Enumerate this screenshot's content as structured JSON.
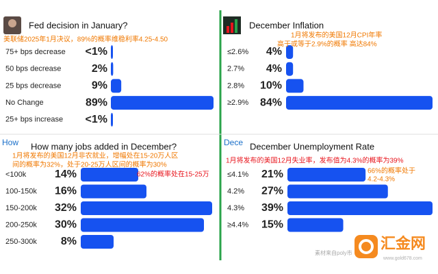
{
  "chart_data": [
    {
      "type": "bar",
      "title": "Fed decision in January?",
      "color": "#1652f0",
      "categories": [
        "75+ bps decrease",
        "50 bps decrease",
        "25 bps decrease",
        "No Change",
        "25+ bps increase"
      ],
      "values": [
        0.5,
        2,
        9,
        89,
        0.5
      ],
      "value_labels": [
        "<1%",
        "2%",
        "9%",
        "89%",
        "<1%"
      ],
      "annotations": [
        {
          "color": "#f07800",
          "lines": [
            "美联储2025年1月决议，89%的概率维稳利率4.25-4.50"
          ]
        }
      ]
    },
    {
      "type": "bar",
      "title": "December Inflation",
      "color": "#1652f0",
      "categories": [
        "≤2.6%",
        "2.7%",
        "2.8%",
        "≥2.9%"
      ],
      "values": [
        4,
        4,
        10,
        84
      ],
      "value_labels": [
        "4%",
        "4%",
        "10%",
        "84%"
      ],
      "annotations": [
        {
          "color": "#f07800",
          "lines": [
            "1月将发布的美国12月CPI年率",
            "高于或等于2.9%的概率  高达84%"
          ]
        }
      ]
    },
    {
      "type": "bar",
      "title": "How many jobs added in December?",
      "icon_alt": "How",
      "color": "#1652f0",
      "categories": [
        "<100k",
        "100-150k",
        "150-200k",
        "200-250k",
        "250-300k"
      ],
      "values": [
        14,
        16,
        32,
        30,
        8
      ],
      "value_labels": [
        "14%",
        "16%",
        "32%",
        "30%",
        "8%"
      ],
      "annotations": [
        {
          "color": "#f07800",
          "lines": [
            "1月将发布的美国12月非农就业，增幅处在15-20万人区",
            "间的概率为32%，处于20-25万人区间的概率为30%"
          ]
        },
        {
          "color": "#e8141c",
          "lines": [
            "62%的概率处在15-25万"
          ]
        }
      ]
    },
    {
      "type": "bar",
      "title": "December Unemployment Rate",
      "icon_alt": "Dece",
      "color": "#1652f0",
      "categories": [
        "≤4.1%",
        "4.2%",
        "4.3%",
        "≥4.4%"
      ],
      "values": [
        21,
        27,
        39,
        15
      ],
      "value_labels": [
        "21%",
        "27%",
        "39%",
        "15%"
      ],
      "annotations": [
        {
          "color": "#e8141c",
          "lines": [
            "1月将发布的美国12月失业率，发布值为4.3%的概率为39%"
          ]
        },
        {
          "color": "#f07800",
          "lines": [
            "66%的概率处于",
            "4.2-4.3%"
          ]
        }
      ]
    }
  ],
  "watermark": {
    "name": "汇金网",
    "url": "www.gold678.com",
    "source": "素材来自poly市"
  }
}
